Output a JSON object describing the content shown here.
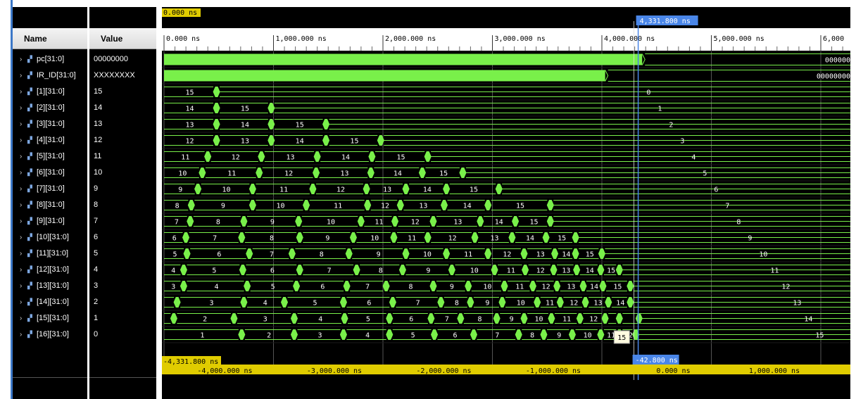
{
  "columns": {
    "name": "Name",
    "value": "Value"
  },
  "signals": [
    {
      "name": "pc[31:0]",
      "value": "00000000",
      "kind": "bar",
      "end_ns": 4368,
      "end_label": "000000"
    },
    {
      "name": "IR_ID[31:0]",
      "value": "XXXXXXXX",
      "kind": "bar",
      "end_ns": 4030,
      "end_label": "00000000"
    },
    {
      "name": "[1][31:0]",
      "value": "15",
      "kind": "bus",
      "segs": [
        [
          0,
          15
        ],
        [
          470,
          ""
        ]
      ],
      "final": "0"
    },
    {
      "name": "[2][31:0]",
      "value": "14",
      "kind": "bus",
      "segs": [
        [
          0,
          14
        ],
        [
          470,
          15
        ],
        [
          970,
          ""
        ]
      ],
      "final": "1"
    },
    {
      "name": "[3][31:0]",
      "value": "13",
      "kind": "bus",
      "segs": [
        [
          0,
          13
        ],
        [
          470,
          14
        ],
        [
          970,
          15
        ],
        [
          1470,
          ""
        ]
      ],
      "final": "2"
    },
    {
      "name": "[4][31:0]",
      "value": "12",
      "kind": "bus",
      "segs": [
        [
          0,
          12
        ],
        [
          470,
          13
        ],
        [
          970,
          14
        ],
        [
          1470,
          15
        ],
        [
          1970,
          ""
        ]
      ],
      "final": "3"
    },
    {
      "name": "[5][31:0]",
      "value": "11",
      "kind": "bus",
      "segs": [
        [
          0,
          11
        ],
        [
          390,
          12
        ],
        [
          880,
          13
        ],
        [
          1390,
          14
        ],
        [
          1890,
          15
        ],
        [
          2400,
          ""
        ]
      ],
      "final": "4"
    },
    {
      "name": "[6][31:0]",
      "value": "10",
      "kind": "bus",
      "segs": [
        [
          0,
          10
        ],
        [
          340,
          11
        ],
        [
          860,
          12
        ],
        [
          1380,
          13
        ],
        [
          1880,
          14
        ],
        [
          2350,
          15
        ],
        [
          2720,
          ""
        ]
      ],
      "final": "5"
    },
    {
      "name": "[7][31:0]",
      "value": "9",
      "kind": "bus",
      "segs": [
        [
          0,
          9
        ],
        [
          300,
          10
        ],
        [
          800,
          11
        ],
        [
          1350,
          12
        ],
        [
          1840,
          13
        ],
        [
          2200,
          14
        ],
        [
          2570,
          15
        ],
        [
          3050,
          ""
        ]
      ],
      "final": "6"
    },
    {
      "name": "[8][31:0]",
      "value": "8",
      "kind": "bus",
      "segs": [
        [
          0,
          8
        ],
        [
          240,
          9
        ],
        [
          800,
          10
        ],
        [
          1290,
          11
        ],
        [
          1850,
          12
        ],
        [
          2150,
          13
        ],
        [
          2550,
          14
        ],
        [
          2950,
          15
        ],
        [
          3520,
          ""
        ]
      ],
      "final": "7"
    },
    {
      "name": "[9][31:0]",
      "value": "7",
      "kind": "bus",
      "segs": [
        [
          0,
          7
        ],
        [
          230,
          8
        ],
        [
          720,
          9
        ],
        [
          1220,
          10
        ],
        [
          1790,
          11
        ],
        [
          2100,
          12
        ],
        [
          2450,
          13
        ],
        [
          2880,
          14
        ],
        [
          3200,
          15
        ],
        [
          3520,
          ""
        ]
      ],
      "final": "8"
    },
    {
      "name": "[10][31:0]",
      "value": "6",
      "kind": "bus",
      "segs": [
        [
          0,
          6
        ],
        [
          190,
          7
        ],
        [
          700,
          8
        ],
        [
          1230,
          9
        ],
        [
          1720,
          10
        ],
        [
          2090,
          11
        ],
        [
          2400,
          12
        ],
        [
          2830,
          13
        ],
        [
          3170,
          14
        ],
        [
          3480,
          15
        ],
        [
          3750,
          ""
        ]
      ],
      "final": "9"
    },
    {
      "name": "[11][31:0]",
      "value": "5",
      "kind": "bus",
      "segs": [
        [
          0,
          5
        ],
        [
          200,
          6
        ],
        [
          770,
          7
        ],
        [
          1160,
          8
        ],
        [
          1680,
          9
        ],
        [
          2200,
          10
        ],
        [
          2570,
          11
        ],
        [
          2950,
          12
        ],
        [
          3280,
          13
        ],
        [
          3560,
          14
        ],
        [
          3750,
          15
        ],
        [
          3990,
          ""
        ]
      ],
      "final": "10"
    },
    {
      "name": "[12][31:0]",
      "value": "4",
      "kind": "bus",
      "segs": [
        [
          0,
          4
        ],
        [
          170,
          5
        ],
        [
          710,
          6
        ],
        [
          1230,
          7
        ],
        [
          1750,
          8
        ],
        [
          2170,
          9
        ],
        [
          2620,
          10
        ],
        [
          3010,
          11
        ],
        [
          3290,
          12
        ],
        [
          3550,
          13
        ],
        [
          3760,
          14
        ],
        [
          3980,
          15
        ],
        [
          4150,
          ""
        ]
      ],
      "final": "11"
    },
    {
      "name": "[13][31:0]",
      "value": "3",
      "kind": "bus",
      "segs": [
        [
          0,
          3
        ],
        [
          170,
          4
        ],
        [
          750,
          5
        ],
        [
          1200,
          6
        ],
        [
          1660,
          7
        ],
        [
          2020,
          8
        ],
        [
          2450,
          9
        ],
        [
          2770,
          10
        ],
        [
          3100,
          11
        ],
        [
          3360,
          12
        ],
        [
          3580,
          13
        ],
        [
          3820,
          14
        ],
        [
          4000,
          15
        ],
        [
          4250,
          ""
        ]
      ],
      "final": "12"
    },
    {
      "name": "[14][31:0]",
      "value": "2",
      "kind": "bus",
      "segs": [
        [
          0,
          ""
        ],
        [
          110,
          3
        ],
        [
          720,
          4
        ],
        [
          1090,
          5
        ],
        [
          1630,
          6
        ],
        [
          2080,
          7
        ],
        [
          2520,
          8
        ],
        [
          2790,
          9
        ],
        [
          3080,
          10
        ],
        [
          3400,
          11
        ],
        [
          3610,
          12
        ],
        [
          3840,
          13
        ],
        [
          4050,
          14
        ],
        [
          4250,
          ""
        ]
      ],
      "final": "13"
    },
    {
      "name": "[15][31:0]",
      "value": "1",
      "kind": "bus",
      "segs": [
        [
          0,
          ""
        ],
        [
          80,
          2
        ],
        [
          630,
          3
        ],
        [
          1180,
          4
        ],
        [
          1640,
          5
        ],
        [
          2050,
          6
        ],
        [
          2430,
          7
        ],
        [
          2700,
          8
        ],
        [
          3030,
          9
        ],
        [
          3280,
          10
        ],
        [
          3530,
          11
        ],
        [
          3790,
          12
        ],
        [
          4020,
          ""
        ],
        [
          4150,
          ""
        ],
        [
          4330,
          ""
        ]
      ],
      "final": "14"
    },
    {
      "name": "[16][31:0]",
      "value": "0",
      "kind": "bus",
      "segs": [
        [
          0,
          1
        ],
        [
          700,
          2
        ],
        [
          1180,
          3
        ],
        [
          1630,
          4
        ],
        [
          2050,
          5
        ],
        [
          2460,
          6
        ],
        [
          2820,
          7
        ],
        [
          3230,
          8
        ],
        [
          3460,
          9
        ],
        [
          3720,
          10
        ],
        [
          3980,
          11
        ],
        [
          4150,
          12
        ],
        [
          4300,
          ""
        ]
      ],
      "final": "15"
    }
  ],
  "cursor_top": "0.000 ns",
  "cursor_label": "4,331.800 ns",
  "timescale": [
    "0.000 ns",
    "1,000.000 ns",
    "2,000.000 ns",
    "3,000.000 ns",
    "4,000.000 ns",
    "5,000.000 ns",
    "6,000"
  ],
  "relative_labels": [
    "-4,000.000 ns",
    "-3,000.000 ns",
    "-2,000.000 ns",
    "-1,000.000 ns",
    "0.000 ns",
    "1,000.000 ns"
  ],
  "delta_left": "-4,331.800 ns",
  "delta_right": "-42.800 ns",
  "tooltip": "15",
  "colors": {
    "wave": "#79f04a",
    "grid": "#c8c8c8",
    "cursor": "#4a86e8",
    "marker": "#e0cc00",
    "background": "#000000"
  }
}
